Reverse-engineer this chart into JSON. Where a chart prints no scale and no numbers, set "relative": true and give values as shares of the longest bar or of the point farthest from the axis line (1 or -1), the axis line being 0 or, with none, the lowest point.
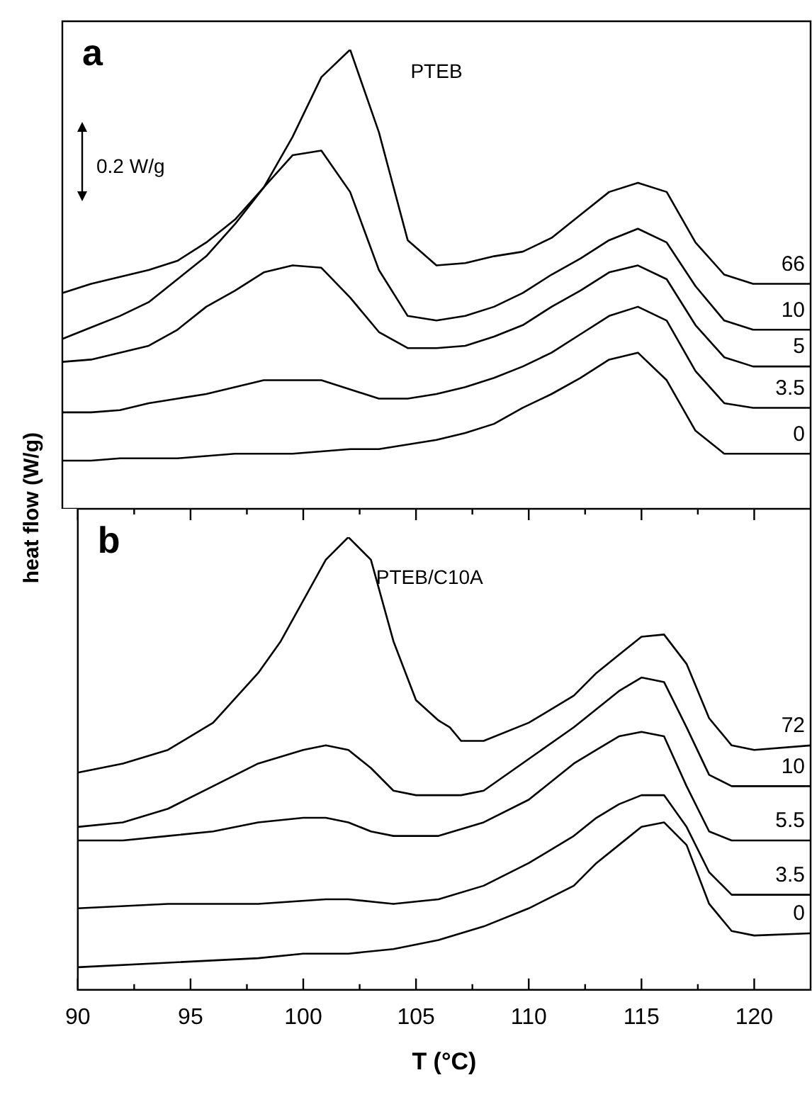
{
  "chart_data": [
    {
      "type": "line",
      "ylabel": "heat flow (W/g)",
      "annotations": [
        "a",
        "PTEB",
        "0.2 W/g"
      ],
      "relative": true,
      "tick_labels": false,
      "legend": false,
      "grid": false,
      "marker": "none",
      "categories": [
        null,
        null,
        null,
        null,
        null,
        null,
        null,
        null,
        null,
        null,
        null,
        null,
        null,
        null,
        null,
        null,
        null,
        null,
        null,
        null,
        null,
        null,
        null,
        null,
        null,
        null,
        null
      ],
      "series": [
        {
          "name": "66",
          "color": "#000000",
          "values": [
            0.47,
            0.49,
            0.505,
            0.52,
            0.54,
            0.58,
            0.63,
            0.7,
            0.81,
            0.94,
            1.0,
            0.82,
            0.585,
            0.53,
            0.535,
            0.55,
            0.56,
            0.59,
            0.64,
            0.69,
            0.71,
            0.69,
            0.58,
            0.51,
            0.49,
            0.49,
            0.49
          ]
        },
        {
          "name": "10",
          "color": "#000000",
          "values": [
            0.37,
            0.395,
            0.42,
            0.45,
            0.5,
            0.55,
            0.62,
            0.7,
            0.77,
            0.78,
            0.69,
            0.52,
            0.42,
            0.41,
            0.42,
            0.44,
            0.47,
            0.51,
            0.545,
            0.585,
            0.61,
            0.58,
            0.485,
            0.41,
            0.39,
            0.39,
            0.39
          ]
        },
        {
          "name": "5",
          "color": "#000000",
          "values": [
            0.32,
            0.325,
            0.34,
            0.355,
            0.39,
            0.44,
            0.475,
            0.515,
            0.53,
            0.525,
            0.46,
            0.385,
            0.35,
            0.35,
            0.355,
            0.375,
            0.4,
            0.44,
            0.475,
            0.515,
            0.53,
            0.5,
            0.4,
            0.33,
            0.31,
            0.31,
            0.31
          ]
        },
        {
          "name": "3.5",
          "color": "#000000",
          "values": [
            0.21,
            0.21,
            0.215,
            0.23,
            0.24,
            0.25,
            0.265,
            0.28,
            0.28,
            0.28,
            0.26,
            0.24,
            0.24,
            0.25,
            0.265,
            0.285,
            0.31,
            0.34,
            0.38,
            0.42,
            0.44,
            0.41,
            0.3,
            0.23,
            0.22,
            0.22,
            0.22
          ]
        },
        {
          "name": "0",
          "color": "#000000",
          "values": [
            0.105,
            0.105,
            0.11,
            0.11,
            0.11,
            0.115,
            0.12,
            0.12,
            0.12,
            0.125,
            0.13,
            0.13,
            0.14,
            0.15,
            0.165,
            0.185,
            0.22,
            0.25,
            0.285,
            0.325,
            0.34,
            0.28,
            0.17,
            0.12,
            0.12,
            0.12,
            0.12
          ]
        }
      ]
    },
    {
      "type": "line",
      "xlabel": "T (°C)",
      "annotations": [
        "b",
        "PTEB/C10A"
      ],
      "relative": true,
      "tick_labels": "x",
      "legend": false,
      "grid": false,
      "marker": "none",
      "xlim": [
        90,
        122.5
      ],
      "xticks": [
        90,
        {
          "value": 92.5,
          "label": null
        },
        95,
        {
          "value": 97.5,
          "label": null
        },
        100,
        {
          "value": 102.5,
          "label": null
        },
        105,
        {
          "value": 107.5,
          "label": null
        },
        110,
        {
          "value": 112.5,
          "label": null
        },
        115,
        {
          "value": 117.5,
          "label": null
        },
        120
      ],
      "series": [
        {
          "name": "72",
          "color": "#000000",
          "x": [
            90,
            92,
            94,
            96,
            98,
            99,
            100,
            101,
            102,
            103,
            104,
            105,
            106,
            106.5,
            107,
            107.5,
            108,
            110,
            112,
            113,
            114,
            115,
            116,
            117,
            118,
            119,
            120,
            122.5
          ],
          "values": [
            0.48,
            0.5,
            0.53,
            0.59,
            0.7,
            0.77,
            0.86,
            0.95,
            1.0,
            0.95,
            0.77,
            0.64,
            0.595,
            0.58,
            0.55,
            0.55,
            0.55,
            0.59,
            0.65,
            0.7,
            0.74,
            0.78,
            0.785,
            0.72,
            0.6,
            0.54,
            0.53,
            0.54
          ]
        },
        {
          "name": "10",
          "color": "#000000",
          "x": [
            90,
            92,
            94,
            96,
            98,
            100,
            101,
            102,
            103,
            104,
            105,
            106,
            107,
            108,
            110,
            112,
            113,
            114,
            115,
            116,
            117,
            118,
            119,
            120,
            122.5
          ],
          "values": [
            0.36,
            0.37,
            0.4,
            0.45,
            0.5,
            0.53,
            0.54,
            0.53,
            0.49,
            0.44,
            0.43,
            0.43,
            0.43,
            0.44,
            0.51,
            0.58,
            0.62,
            0.66,
            0.69,
            0.68,
            0.58,
            0.475,
            0.45,
            0.45,
            0.45
          ]
        },
        {
          "name": "5.5",
          "color": "#000000",
          "x": [
            90,
            92,
            94,
            96,
            98,
            100,
            101,
            102,
            103,
            104,
            105,
            106,
            108,
            110,
            112,
            113,
            114,
            115,
            116,
            117,
            118,
            119,
            120,
            122.5
          ],
          "values": [
            0.33,
            0.33,
            0.34,
            0.35,
            0.37,
            0.38,
            0.38,
            0.37,
            0.35,
            0.34,
            0.34,
            0.34,
            0.37,
            0.42,
            0.5,
            0.53,
            0.56,
            0.57,
            0.56,
            0.45,
            0.35,
            0.33,
            0.33,
            0.33
          ]
        },
        {
          "name": "3.5",
          "color": "#000000",
          "x": [
            90,
            94,
            98,
            101,
            102,
            104,
            106,
            108,
            110,
            112,
            113,
            114,
            115,
            116,
            117,
            118,
            119,
            120,
            122.5
          ],
          "values": [
            0.18,
            0.19,
            0.19,
            0.2,
            0.2,
            0.19,
            0.2,
            0.23,
            0.28,
            0.34,
            0.38,
            0.41,
            0.43,
            0.43,
            0.36,
            0.26,
            0.21,
            0.21,
            0.21
          ]
        },
        {
          "name": "0",
          "color": "#000000",
          "x": [
            90,
            94,
            98,
            100,
            102,
            104,
            106,
            108,
            110,
            112,
            113,
            114,
            115,
            116,
            117,
            118,
            119,
            120,
            122.5
          ],
          "values": [
            0.05,
            0.06,
            0.07,
            0.08,
            0.08,
            0.09,
            0.11,
            0.14,
            0.18,
            0.23,
            0.28,
            0.32,
            0.36,
            0.37,
            0.32,
            0.19,
            0.13,
            0.12,
            0.125
          ]
        }
      ]
    }
  ]
}
